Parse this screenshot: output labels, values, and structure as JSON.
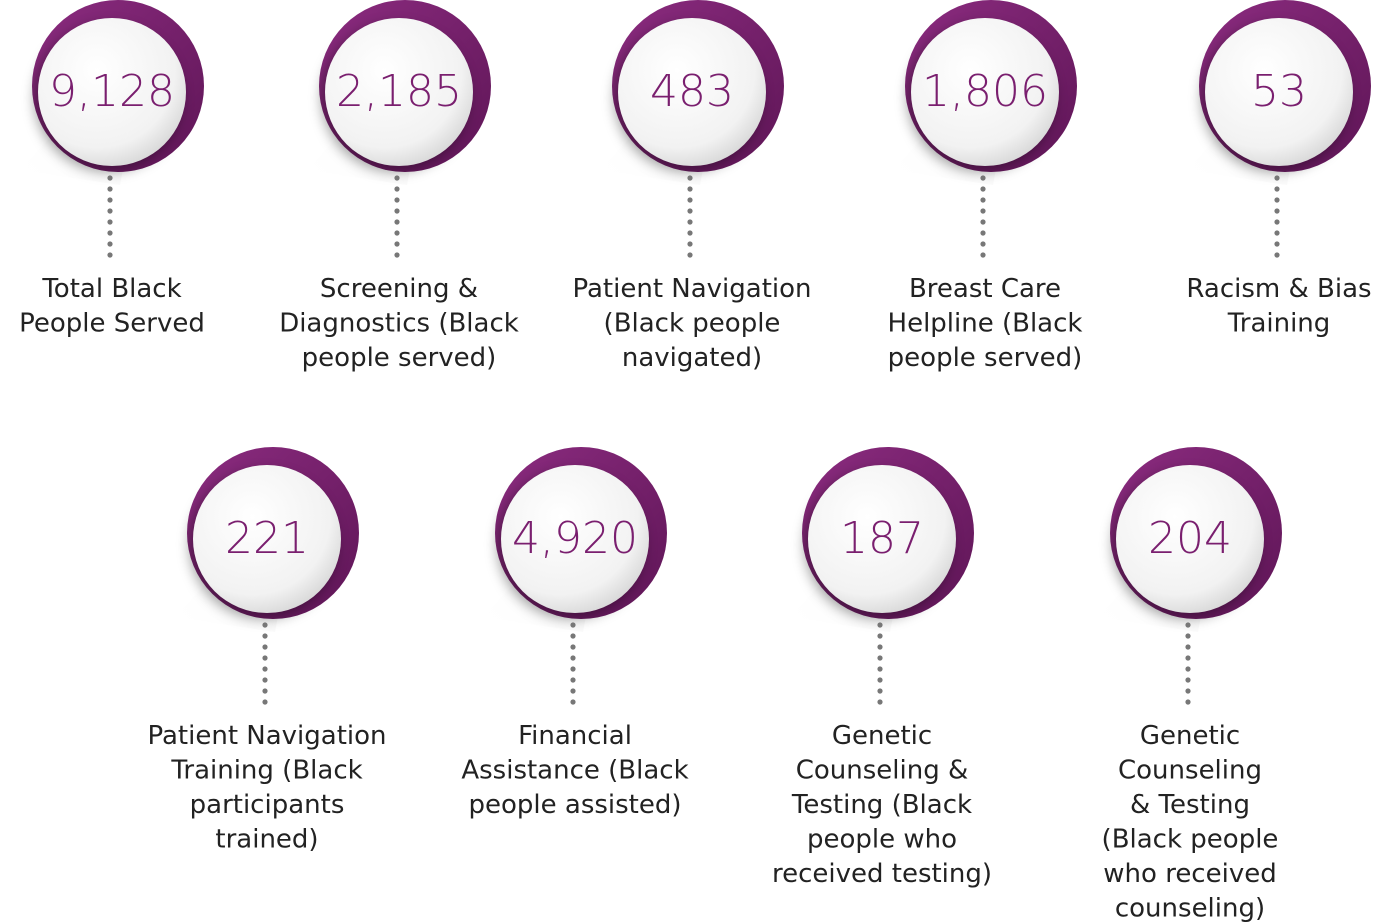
{
  "rows": [
    {
      "items": [
        {
          "value": "9,128",
          "caption": [
            "Total Black",
            "People Served"
          ]
        },
        {
          "value": "2,185",
          "caption": [
            "Screening &",
            "Diagnostics (Black",
            "people served)"
          ]
        },
        {
          "value": "483",
          "caption": [
            "Patient Navigation",
            "(Black people",
            "navigated)"
          ]
        },
        {
          "value": "1,806",
          "caption": [
            "Breast Care",
            "Helpline (Black",
            "people served)"
          ]
        },
        {
          "value": "53",
          "caption": [
            "Racism & Bias",
            "Training"
          ]
        }
      ]
    },
    {
      "items": [
        {
          "value": "221",
          "caption": [
            "Patient Navigation",
            "Training (Black",
            "participants",
            "trained)"
          ]
        },
        {
          "value": "4,920",
          "caption": [
            "Financial",
            "Assistance (Black",
            "people assisted)"
          ]
        },
        {
          "value": "187",
          "caption": [
            "Genetic",
            "Counseling &",
            "Testing (Black",
            "people who",
            "received testing)"
          ]
        },
        {
          "value": "204",
          "caption": [
            "Genetic",
            "Counseling",
            "& Testing",
            "(Black people",
            "who received",
            "counseling)"
          ]
        }
      ]
    }
  ]
}
